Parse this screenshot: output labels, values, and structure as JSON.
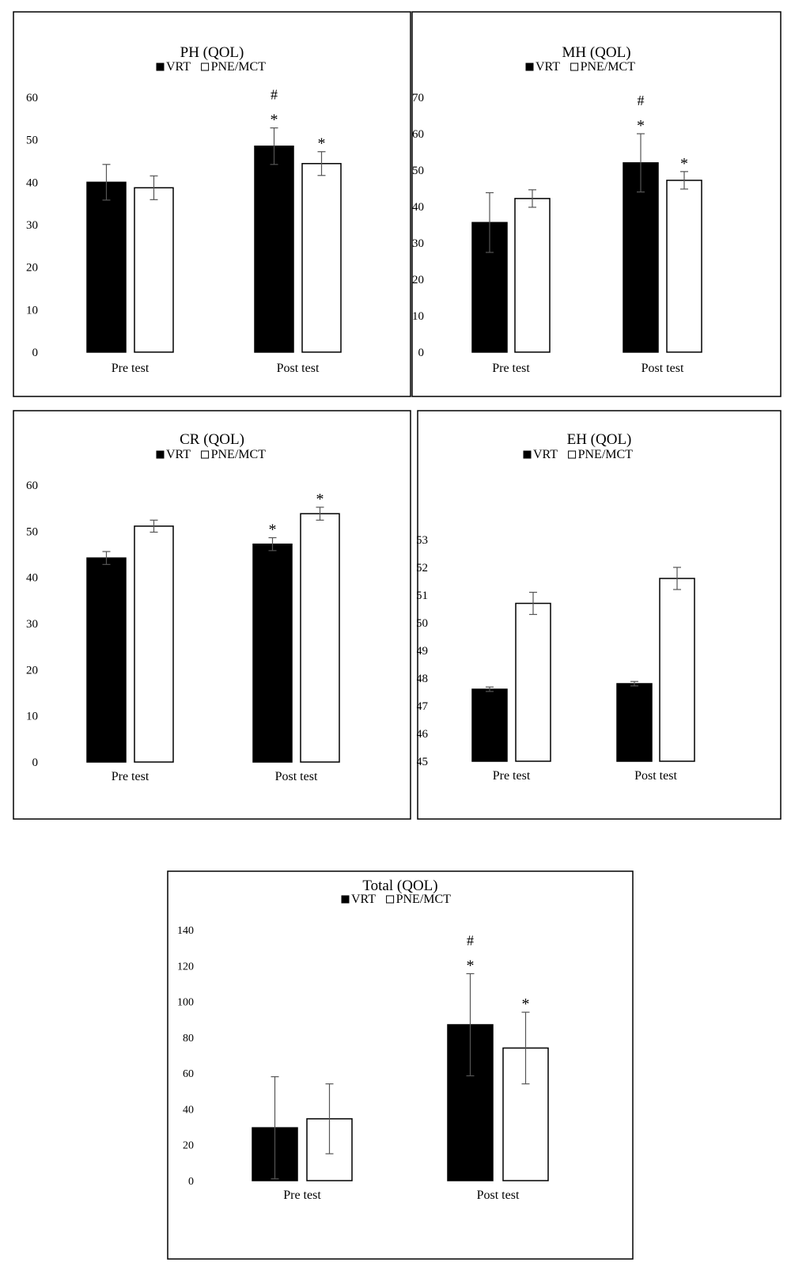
{
  "colors": {
    "vrt": "#000000",
    "pne": "#ffffff",
    "outline": "#000000",
    "error": "#555555"
  },
  "chart_data": [
    {
      "id": "ph",
      "type": "bar",
      "title": "PH (QOL)",
      "categories": [
        "Pre test",
        "Post test"
      ],
      "legend": [
        "VRT",
        "PNE/MCT"
      ],
      "legend_position": "top",
      "ylim": [
        0,
        60
      ],
      "yticks": [
        0,
        10,
        20,
        30,
        40,
        50,
        60
      ],
      "series": [
        {
          "name": "VRT",
          "values": [
            40,
            48.5
          ],
          "errors": [
            4.2,
            4.3
          ]
        },
        {
          "name": "PNE/MCT",
          "values": [
            38.7,
            44.4
          ],
          "errors": [
            2.8,
            2.8
          ]
        }
      ],
      "annotations": [
        {
          "series": 0,
          "category": 1,
          "marks": [
            "#",
            "*"
          ]
        },
        {
          "series": 1,
          "category": 1,
          "marks": [
            "*"
          ]
        }
      ]
    },
    {
      "id": "mh",
      "type": "bar",
      "title": "MH (QOL)",
      "categories": [
        "Pre test",
        "Post test"
      ],
      "legend": [
        "VRT",
        "PNE/MCT"
      ],
      "legend_position": "top",
      "ylim": [
        0,
        70
      ],
      "yticks": [
        0,
        10,
        20,
        30,
        40,
        50,
        60,
        70
      ],
      "series": [
        {
          "name": "VRT",
          "values": [
            35.6,
            52
          ],
          "errors": [
            8.2,
            8
          ]
        },
        {
          "name": "PNE/MCT",
          "values": [
            42.2,
            47.2
          ],
          "errors": [
            2.4,
            2.4
          ]
        }
      ],
      "annotations": [
        {
          "series": 0,
          "category": 1,
          "marks": [
            "#",
            "*"
          ]
        },
        {
          "series": 1,
          "category": 1,
          "marks": [
            "*"
          ]
        }
      ]
    },
    {
      "id": "cr",
      "type": "bar",
      "title": "CR (QOL)",
      "categories": [
        "Pre test",
        "Post test"
      ],
      "legend": [
        "VRT",
        "PNE/MCT"
      ],
      "legend_position": "top",
      "ylim": [
        0,
        60
      ],
      "yticks": [
        0,
        10,
        20,
        30,
        40,
        50,
        60
      ],
      "series": [
        {
          "name": "VRT",
          "values": [
            44.2,
            47.2
          ],
          "errors": [
            1.4,
            1.4
          ]
        },
        {
          "name": "PNE/MCT",
          "values": [
            51.1,
            53.8
          ],
          "errors": [
            1.3,
            1.4
          ]
        }
      ],
      "annotations": [
        {
          "series": 0,
          "category": 1,
          "marks": [
            "*"
          ]
        },
        {
          "series": 1,
          "category": 1,
          "marks": [
            "*"
          ]
        }
      ]
    },
    {
      "id": "eh",
      "type": "bar",
      "title": "EH (QOL)",
      "categories": [
        "Pre test",
        "Post test"
      ],
      "legend": [
        "VRT",
        "PNE/MCT"
      ],
      "legend_position": "top",
      "ylim": [
        45,
        53
      ],
      "yticks": [
        45,
        46,
        47,
        48,
        49,
        50,
        51,
        52,
        53
      ],
      "series": [
        {
          "name": "VRT",
          "values": [
            47.6,
            47.8
          ],
          "errors": [
            0.08,
            0.08
          ]
        },
        {
          "name": "PNE/MCT",
          "values": [
            50.7,
            51.6
          ],
          "errors": [
            0.4,
            0.4
          ]
        }
      ],
      "annotations": []
    },
    {
      "id": "total",
      "type": "bar",
      "title": "Total (QOL)",
      "categories": [
        "Pre test",
        "Post test"
      ],
      "legend": [
        "VRT",
        "PNE/MCT"
      ],
      "legend_position": "top",
      "ylim": [
        0,
        140
      ],
      "yticks": [
        0,
        20,
        40,
        60,
        80,
        100,
        120,
        140
      ],
      "series": [
        {
          "name": "VRT",
          "values": [
            29.5,
            87
          ],
          "errors": [
            28.5,
            28.5
          ]
        },
        {
          "name": "PNE/MCT",
          "values": [
            34.5,
            74
          ],
          "errors": [
            19.5,
            20
          ]
        }
      ],
      "annotations": [
        {
          "series": 0,
          "category": 1,
          "marks": [
            "#",
            "*"
          ]
        },
        {
          "series": 1,
          "category": 1,
          "marks": [
            "*"
          ]
        }
      ]
    }
  ]
}
